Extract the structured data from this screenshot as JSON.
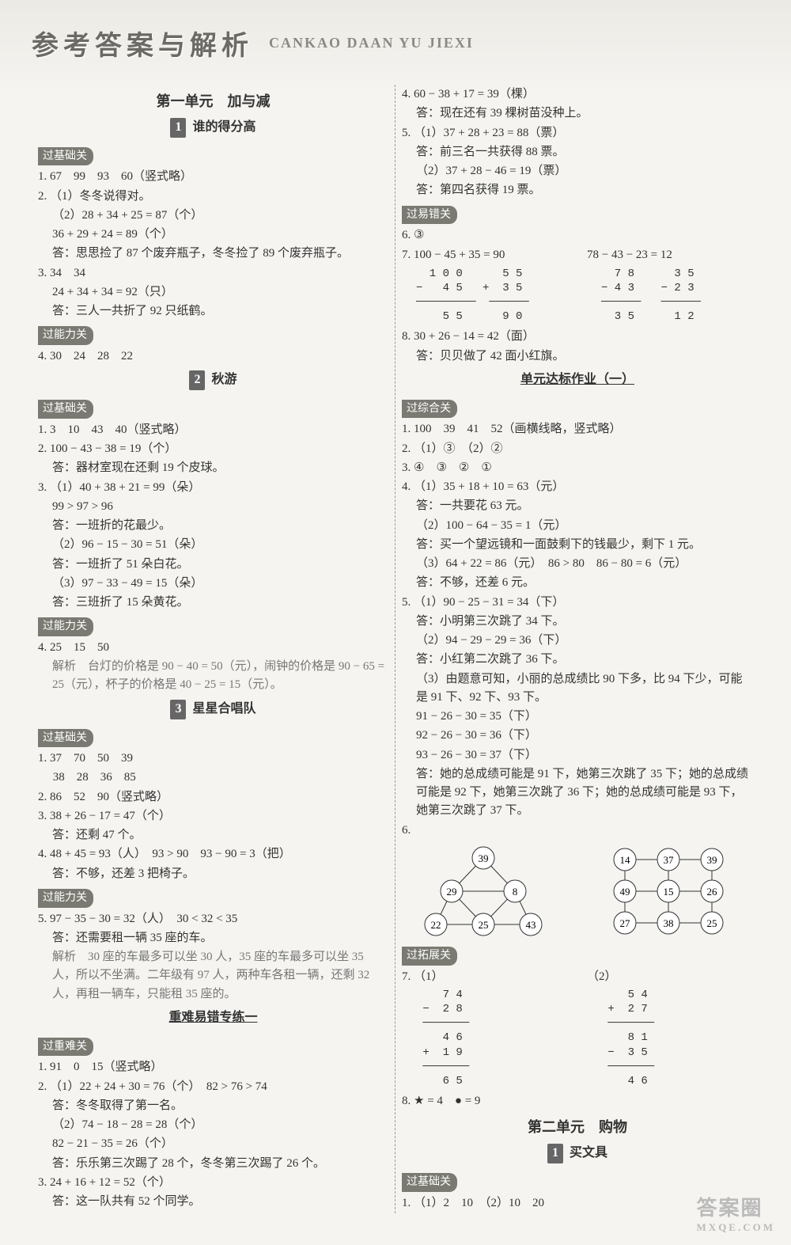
{
  "header": {
    "title": "参考答案与解析",
    "pinyin": "CANKAO DAAN YU JIEXI"
  },
  "left": {
    "unit1": "第一单元　加与减",
    "s1": {
      "num": "1",
      "title": "谁的得分高"
    },
    "tag_jichu": "过基础关",
    "l1_1": "1. 67　99　93　60（竖式略）",
    "l1_2a": "2. （1）冬冬说得对。",
    "l1_2b": "（2）28 + 34 + 25 = 87（个）",
    "l1_2c": "36 + 29 + 24 = 89（个）",
    "l1_2d": "答：思思捡了 87 个废弃瓶子，冬冬捡了 89 个废弃瓶子。",
    "l1_3a": "3. 34　34",
    "l1_3b": "24 + 34 + 34 = 92（只）",
    "l1_3c": "答：三人一共折了 92 只纸鹤。",
    "tag_nengli": "过能力关",
    "l1_4": "4. 30　24　28　22",
    "s2": {
      "num": "2",
      "title": "秋游"
    },
    "l2_1": "1. 3　10　43　40（竖式略）",
    "l2_2a": "2. 100 − 43 − 38 = 19（个）",
    "l2_2b": "答：器材室现在还剩 19 个皮球。",
    "l2_3a": "3. （1）40 + 38 + 21 = 99（朵）",
    "l2_3b": "99 > 97 > 96",
    "l2_3c": "答：一班折的花最少。",
    "l2_3d": "（2）96 − 15 − 30 = 51（朵）",
    "l2_3e": "答：一班折了 51 朵白花。",
    "l2_3f": "（3）97 − 33 − 49 = 15（朵）",
    "l2_3g": "答：三班折了 15 朵黄花。",
    "l2_4a": "4. 25　15　50",
    "l2_4b": "解析　台灯的价格是 90 − 40 = 50（元），闹钟的价格是 90 − 65 = 25（元），杯子的价格是 40 − 25 = 15（元）。",
    "s3": {
      "num": "3",
      "title": "星星合唱队"
    },
    "l3_1a": "1. 37　70　50　39",
    "l3_1b": "　 38　28　36　85",
    "l3_2": "2. 86　52　90（竖式略）",
    "l3_3a": "3. 38 + 26 − 17 = 47（个）",
    "l3_3b": "答：还剩 47 个。",
    "l3_4a": "4. 48 + 45 = 93（人）　93 > 90　93 − 90 = 3（把）",
    "l3_4b": "答：不够，还差 3 把椅子。",
    "l3_5a": "5. 97 − 35 − 30 = 32（人）　30 < 32 < 35",
    "l3_5b": "答：还需要租一辆 35 座的车。",
    "l3_5c": "解析　30 座的车最多可以坐 30 人，35 座的车最多可以坐 35 人，所以不坐满。二年级有 97 人，两种车各租一辆，还剩 32 人，再租一辆车，只能租 35 座的。",
    "zhongnan": "重难易错专练一",
    "tag_zhongnan": "过重难关",
    "z1": "1. 91　0　15（竖式略）",
    "z2a": "2. （1）22 + 24 + 30 = 76（个）　82 > 76 > 74",
    "z2b": "答：冬冬取得了第一名。",
    "z2c": "（2）74 − 18 − 28 = 28（个）",
    "z2d": "82 − 21 − 35 = 26（个）",
    "z2e": "答：乐乐第三次踢了 28 个，冬冬第三次踢了 26 个。",
    "z3a": "3. 24 + 16 + 12 = 52（个）",
    "z3b": "答：这一队共有 52 个同学。"
  },
  "right": {
    "r4a": "4. 60 − 38 + 17 = 39（棵）",
    "r4b": "答：现在还有 39 棵树苗没种上。",
    "r5a": "5. （1）37 + 28 + 23 = 88（票）",
    "r5b": "答：前三名一共获得 88 票。",
    "r5c": "（2）37 + 28 − 46 = 19（票）",
    "r5d": "答：第四名获得 19 票。",
    "tag_yicuo": "过易错关",
    "r6": "6. ③",
    "r7a": "7. 100 − 45 + 35 = 90",
    "r7b": "78 − 43 − 23 = 12",
    "calc1": "  1 0 0      5 5\n−   4 5   +  3 5\n─────────  ──────\n    5 5      9 0",
    "calc2": "  7 8      3 5\n− 4 3    − 2 3\n──────   ──────\n  3 5      1 2",
    "r8a": "8. 30 + 26 − 14 = 42（面）",
    "r8b": "答：贝贝做了 42 面小红旗。",
    "dabiao": "单元达标作业（一）",
    "tag_zonghe": "过综合关",
    "d1": "1. 100　39　41　52（画横线略，竖式略）",
    "d2": "2. （1）③　（2）②",
    "d3": "3. ④　③　②　①",
    "d4a": "4. （1）35 + 18 + 10 = 63（元）",
    "d4b": "答：一共要花 63 元。",
    "d4c": "（2）100 − 64 − 35 = 1（元）",
    "d4d": "答：买一个望远镜和一面鼓剩下的钱最少，剩下 1 元。",
    "d4e": "（3）64 + 22 = 86（元）　86 > 80　86 − 80 = 6（元）",
    "d4f": "答：不够，还差 6 元。",
    "d5a": "5. （1）90 − 25 − 31 = 34（下）",
    "d5b": "答：小明第三次跳了 34 下。",
    "d5c": "（2）94 − 29 − 29 = 36（下）",
    "d5d": "答：小红第二次跳了 36 下。",
    "d5e": "（3）由题意可知，小丽的总成绩比 90 下多，比 94 下少，可能是 91 下、92 下、93 下。",
    "d5f": "91 − 26 − 30 = 35（下）",
    "d5g": "92 − 26 − 30 = 36（下）",
    "d5h": "93 − 26 − 30 = 37（下）",
    "d5i": "答：她的总成绩可能是 91 下，她第三次跳了 35 下；她的总成绩可能是 92 下，她第三次跳了 36 下；她的总成绩可能是 93 下，她第三次跳了 37 下。",
    "d6": "6.",
    "triangle": {
      "nodes": [
        39,
        29,
        8,
        22,
        25,
        43
      ]
    },
    "square": {
      "nodes": [
        14,
        37,
        39,
        49,
        15,
        26,
        27,
        38,
        25
      ]
    },
    "tag_tuozhan": "过拓展关",
    "d7": "7. （1）",
    "calc_d7a": "    7 4\n −  2 8\n ───────\n    4 6\n +  1 9\n ───────\n    6 5",
    "d7b": "（2）",
    "calc_d7b": "    5 4\n +  2 7\n ───────\n    8 1\n −  3 5\n ───────\n    4 6",
    "d8": "8. ★ = 4　● = 9",
    "unit2": "第二单元　购物",
    "s_buy": {
      "num": "1",
      "title": "买文具"
    },
    "b1": "1. （1）2　10　（2）10　20"
  },
  "watermark": {
    "big": "答案圈",
    "small": "MXQE.COM"
  }
}
